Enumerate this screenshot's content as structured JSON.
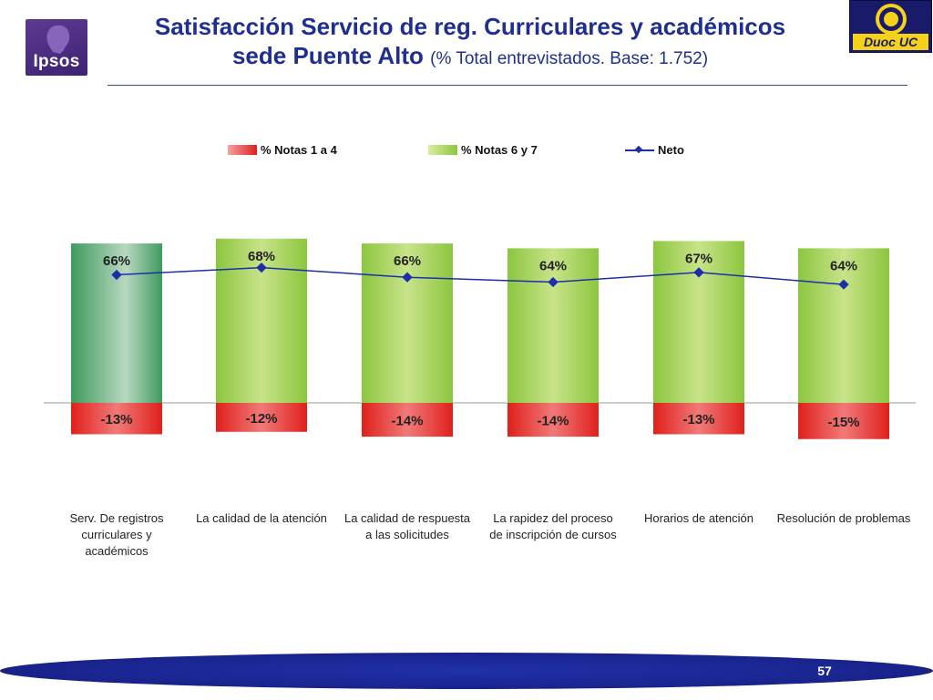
{
  "header": {
    "logo_left_text": "Ipsos",
    "logo_right_text": "Duoc UC",
    "title_line1": "Satisfacción Servicio de reg. Curriculares y académicos",
    "title_line2": "sede Puente Alto",
    "subtitle": "(% Total entrevistados. Base: 1.752)"
  },
  "footer": {
    "page_number": "57"
  },
  "colors": {
    "title": "#1f2f8f",
    "negative_bar": "#e0201c",
    "positive_bar": "#8cc63e",
    "highlight_bar": "#3f9a5e",
    "line": "#1b2fa8",
    "footer": "#1a2590"
  },
  "chart_data": {
    "type": "bar",
    "categories": [
      "Serv. De registros curriculares y académicos",
      "La calidad de la atención",
      "La calidad de respuesta a las solicitudes",
      "La rapidez del proceso de inscripción de cursos",
      "Horarios de atención",
      "Resolución de problemas"
    ],
    "category_lines": [
      [
        "Serv. De registros",
        "curriculares y",
        "académicos"
      ],
      [
        "La calidad de la atención"
      ],
      [
        "La calidad de respuesta",
        "a las solicitudes"
      ],
      [
        "La rapidez del proceso",
        "de inscripción de cursos"
      ],
      [
        "Horarios de atención"
      ],
      [
        "Resolución de problemas"
      ]
    ],
    "series": [
      {
        "name": "% Notas 1 a 4",
        "values": [
          -13,
          -12,
          -14,
          -14,
          -13,
          -15
        ],
        "labels": [
          "-13%",
          "-12%",
          "-14%",
          "-14%",
          "-13%",
          "-15%"
        ]
      },
      {
        "name": "% Notas 6 y 7",
        "values": [
          66,
          68,
          66,
          64,
          67,
          64
        ],
        "labels": [
          "66%",
          "68%",
          "66%",
          "64%",
          "67%",
          "64%"
        ]
      },
      {
        "name": "Neto",
        "values": [
          53,
          56,
          52,
          50,
          54,
          49
        ]
      }
    ],
    "highlight_category_index": 0,
    "legend_position": "top",
    "grid": false
  }
}
